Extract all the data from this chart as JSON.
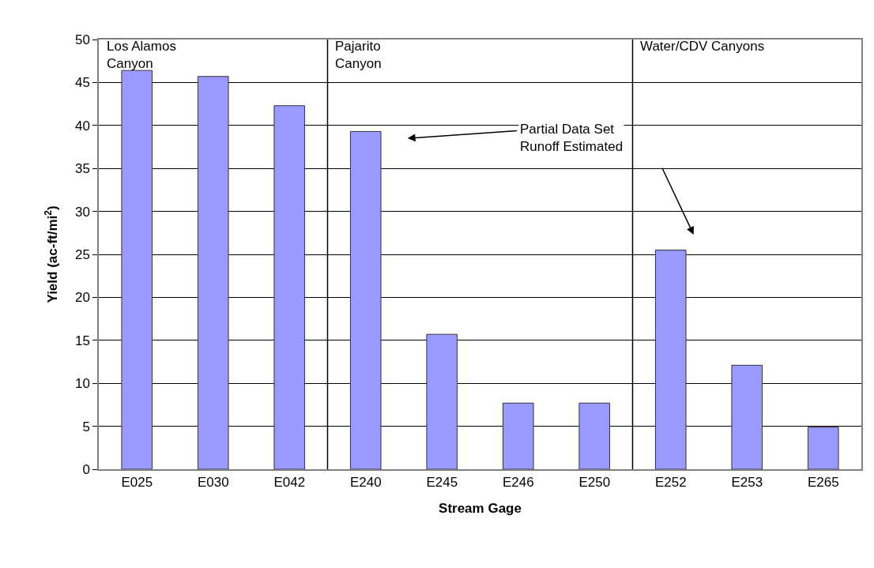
{
  "chart_data": {
    "type": "bar",
    "xlabel": "Stream Gage",
    "ylabel": "Yield (ac-ft/mi$^{2}$)",
    "categories": [
      "E025",
      "E030",
      "E042",
      "E240",
      "E245",
      "E246",
      "E250",
      "E252",
      "E253",
      "E265"
    ],
    "values": [
      46.4,
      45.7,
      42.3,
      39.3,
      15.7,
      7.7,
      7.7,
      25.5,
      12.1,
      4.9
    ],
    "color": "#9999ff",
    "ylim": [
      0,
      50
    ],
    "yticks": [
      0,
      5,
      10,
      15,
      20,
      25,
      30,
      35,
      40,
      45,
      50
    ],
    "grid": "y",
    "annotations": [
      "Los Alamos\nCanyon",
      "Pajarito\nCanyon",
      "Water/CDV Canyons",
      "Partial Data Set\nRunoff Estimated"
    ]
  }
}
